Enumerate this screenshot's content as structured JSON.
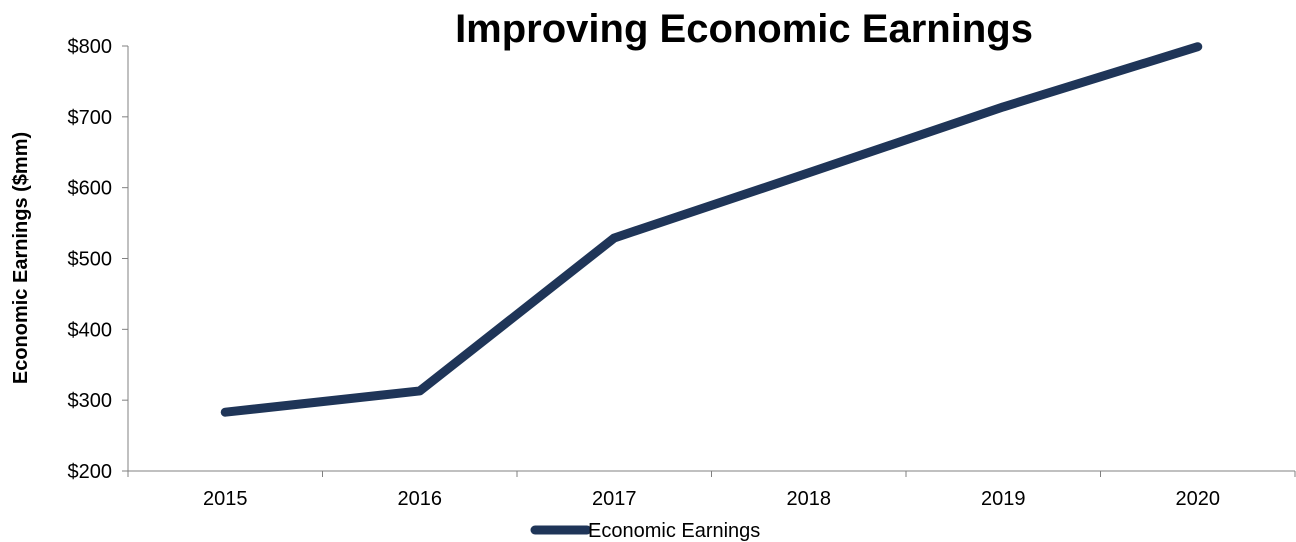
{
  "chart_data": {
    "type": "line",
    "title": "Improving Economic Earnings",
    "xlabel": "",
    "ylabel": "Economic Earnings ($mm)",
    "categories": [
      "2015",
      "2016",
      "2017",
      "2018",
      "2019",
      "2020"
    ],
    "series": [
      {
        "name": "Economic Earnings",
        "values": [
          283,
          313,
          529,
          621,
          714,
          799
        ],
        "color": "#1f3558"
      }
    ],
    "ylim": [
      200,
      800
    ],
    "yticks": [
      200,
      300,
      400,
      500,
      600,
      700,
      800
    ],
    "ytick_labels": [
      "$200",
      "$300",
      "$400",
      "$500",
      "$600",
      "$700",
      "$800"
    ],
    "grid": false,
    "legend_position": "bottom-center"
  }
}
